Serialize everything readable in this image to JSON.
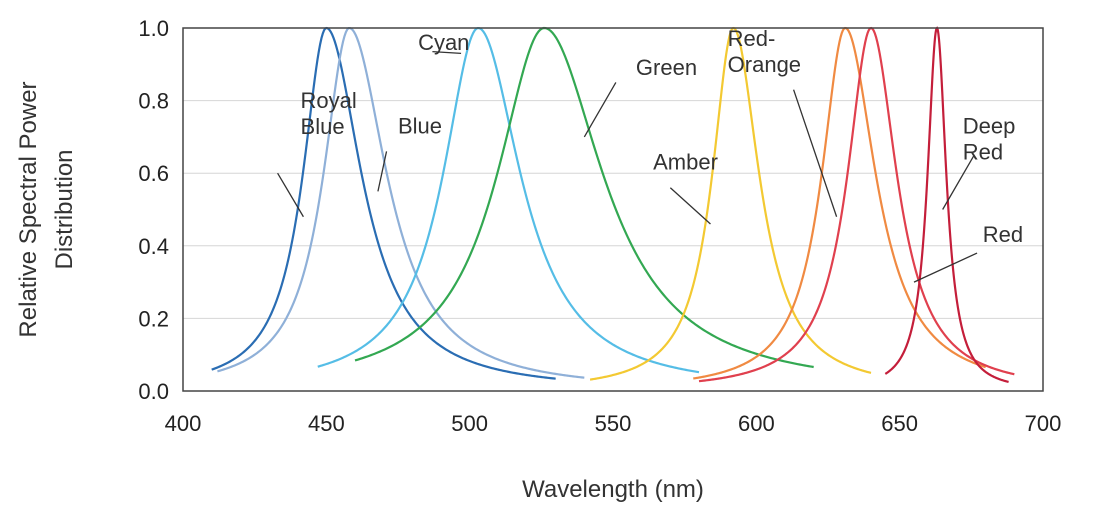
{
  "chart_data": {
    "type": "line",
    "xlabel": "Wavelength (nm)",
    "ylabel_lines": [
      "Relative Spectral Power",
      "Distribution"
    ],
    "xlim": [
      400,
      700
    ],
    "ylim": [
      0,
      1.0
    ],
    "x_ticks": [
      "400",
      "450",
      "500",
      "550",
      "600",
      "650",
      "700"
    ],
    "y_ticks": [
      "0.0",
      "0.2",
      "0.4",
      "0.6",
      "0.8",
      "1.0"
    ],
    "grid": "horizontal",
    "series": [
      {
        "name": "Royal Blue",
        "color": "#2a6db3",
        "peak": 450,
        "hwl": 10,
        "hwr": 15,
        "x_range": [
          410,
          530
        ]
      },
      {
        "name": "Blue",
        "color": "#8fb0d8",
        "peak": 458,
        "hwl": 11,
        "hwr": 16,
        "x_range": [
          412,
          540
        ]
      },
      {
        "name": "Cyan",
        "color": "#55bde6",
        "peak": 503,
        "hwl": 15,
        "hwr": 18,
        "x_range": [
          447,
          580
        ]
      },
      {
        "name": "Green",
        "color": "#33a852",
        "peak": 526,
        "hwl": 20,
        "hwr": 25,
        "x_range": [
          460,
          620
        ]
      },
      {
        "name": "Amber",
        "color": "#f3c932",
        "peak": 592,
        "hwl": 9,
        "hwr": 11,
        "x_range": [
          542,
          640
        ]
      },
      {
        "name": "Red-Orange",
        "color": "#f08a42",
        "peak": 631,
        "hwl": 10,
        "hwr": 13,
        "x_range": [
          578,
          680
        ]
      },
      {
        "name": "Red",
        "color": "#e0404e",
        "peak": 640,
        "hwl": 10,
        "hwr": 11,
        "x_range": [
          580,
          690
        ]
      },
      {
        "name": "Deep Red",
        "color": "#c41e3a",
        "peak": 663,
        "hwl": 4,
        "hwr": 4,
        "x_range": [
          645,
          688
        ]
      }
    ],
    "annotations": [
      {
        "lines": [
          "Royal",
          "Blue"
        ],
        "x": 441,
        "y": 0.78,
        "leader_from": [
          433,
          0.6
        ],
        "leader_to": [
          442,
          0.48
        ]
      },
      {
        "lines": [
          "Blue"
        ],
        "x": 475,
        "y": 0.71,
        "leader_from": [
          471,
          0.66
        ],
        "leader_to": [
          468,
          0.55
        ]
      },
      {
        "lines": [
          "Cyan"
        ],
        "x": 482,
        "y": 0.94,
        "leader_from": [
          487,
          0.935
        ],
        "leader_to": [
          497,
          0.93
        ]
      },
      {
        "lines": [
          "Green"
        ],
        "x": 558,
        "y": 0.87,
        "leader_from": [
          551,
          0.85
        ],
        "leader_to": [
          540,
          0.7
        ]
      },
      {
        "lines": [
          "Amber"
        ],
        "x": 564,
        "y": 0.61,
        "leader_from": [
          570,
          0.56
        ],
        "leader_to": [
          584,
          0.46
        ]
      },
      {
        "lines": [
          "Red-",
          "Orange"
        ],
        "x": 590,
        "y": 0.95,
        "leader_from": [
          613,
          0.83
        ],
        "leader_to": [
          628,
          0.48
        ]
      },
      {
        "lines": [
          "Deep",
          "Red"
        ],
        "x": 672,
        "y": 0.71,
        "leader_from": [
          676,
          0.65
        ],
        "leader_to": [
          665,
          0.5
        ]
      },
      {
        "lines": [
          "Red"
        ],
        "x": 679,
        "y": 0.41,
        "leader_from": [
          677,
          0.38
        ],
        "leader_to": [
          655,
          0.3
        ]
      }
    ]
  }
}
